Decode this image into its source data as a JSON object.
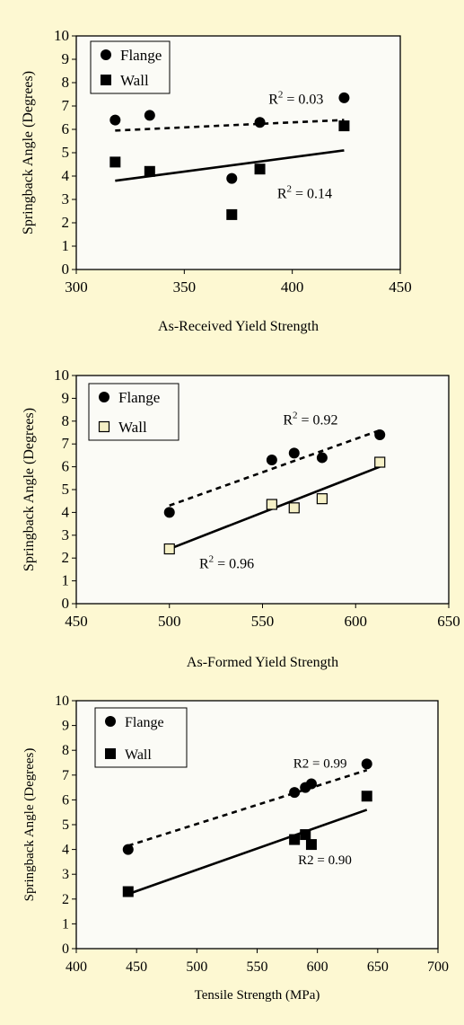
{
  "chart_data": [
    {
      "type": "scatter",
      "xlabel": "As-Received Yield Strength",
      "ylabel": "Springback Angle (Degrees)",
      "xlim": [
        300,
        450
      ],
      "ylim": [
        0,
        10
      ],
      "xticks": [
        300,
        350,
        400,
        450
      ],
      "yticks": [
        0,
        1,
        2,
        3,
        4,
        5,
        6,
        7,
        8,
        9,
        10
      ],
      "grid": false,
      "legend": "top-left",
      "series": [
        {
          "name": "Flange",
          "marker": "circle",
          "color": "#000000",
          "x": [
            318,
            334,
            372,
            385,
            424
          ],
          "y": [
            6.4,
            6.6,
            3.9,
            6.3,
            7.35
          ],
          "trend": {
            "style": "dashed",
            "from": [
              318,
              5.95
            ],
            "to": [
              424,
              6.4
            ]
          }
        },
        {
          "name": "Wall",
          "marker": "square",
          "color": "#000000",
          "x": [
            318,
            334,
            372,
            385,
            424
          ],
          "y": [
            4.6,
            4.2,
            2.35,
            4.3,
            6.15
          ],
          "trend": {
            "style": "solid",
            "from": [
              318,
              3.8
            ],
            "to": [
              424,
              5.1
            ]
          }
        }
      ],
      "annotations": [
        {
          "text": "R",
          "sup": "2",
          "rest": " = 0.03",
          "x": 389,
          "y": 7.1
        },
        {
          "text": "R",
          "sup": "2",
          "rest": " = 0.14",
          "x": 393,
          "y": 3.05
        }
      ]
    },
    {
      "type": "scatter",
      "xlabel": "As-Formed Yield Strength",
      "ylabel": "Springback Angle (Degrees)",
      "xlim": [
        450,
        650
      ],
      "ylim": [
        0,
        10
      ],
      "xticks": [
        450,
        500,
        550,
        600,
        650
      ],
      "yticks": [
        0,
        1,
        2,
        3,
        4,
        5,
        6,
        7,
        8,
        9,
        10
      ],
      "grid": false,
      "legend": "top-left",
      "series": [
        {
          "name": "Flange",
          "marker": "circle",
          "color": "#000000",
          "x": [
            500,
            555,
            567,
            582,
            613
          ],
          "y": [
            4.0,
            6.3,
            6.6,
            6.4,
            7.4
          ],
          "trend": {
            "style": "dashed",
            "from": [
              500,
              4.3
            ],
            "to": [
              613,
              7.6
            ]
          }
        },
        {
          "name": "Wall",
          "marker": "square-open",
          "color": "#f5f0c6",
          "x": [
            500,
            555,
            567,
            582,
            613
          ],
          "y": [
            2.4,
            4.35,
            4.2,
            4.6,
            6.2
          ],
          "trend": {
            "style": "solid",
            "from": [
              500,
              2.4
            ],
            "to": [
              613,
              6.0
            ]
          }
        }
      ],
      "annotations": [
        {
          "text": "R",
          "sup": "2",
          "rest": " = 0.92",
          "x": 561,
          "y": 7.85
        },
        {
          "text": "R",
          "sup": "2",
          "rest": " = 0.96",
          "x": 516,
          "y": 1.55
        }
      ]
    },
    {
      "type": "scatter",
      "xlabel": "Tensile Strength (MPa)",
      "ylabel": "Springback Angle (Degrees)",
      "xlim": [
        400,
        700
      ],
      "ylim": [
        0,
        10
      ],
      "xticks": [
        400,
        450,
        500,
        550,
        600,
        650,
        700
      ],
      "yticks": [
        0,
        1,
        2,
        3,
        4,
        5,
        6,
        7,
        8,
        9,
        10
      ],
      "grid": false,
      "legend": "top-left",
      "series": [
        {
          "name": "Flange",
          "marker": "circle",
          "color": "#000000",
          "x": [
            443,
            581,
            590,
            595,
            641
          ],
          "y": [
            4.0,
            6.3,
            6.5,
            6.65,
            7.45
          ],
          "trend": {
            "style": "dashed",
            "from": [
              443,
              4.15
            ],
            "to": [
              641,
              7.2
            ]
          }
        },
        {
          "name": "Wall",
          "marker": "square",
          "color": "#000000",
          "x": [
            443,
            581,
            590,
            595,
            641
          ],
          "y": [
            2.3,
            4.4,
            4.6,
            4.2,
            6.15
          ],
          "trend": {
            "style": "solid",
            "from": [
              443,
              2.2
            ],
            "to": [
              641,
              5.6
            ]
          }
        }
      ],
      "annotations": [
        {
          "text": "R2 = 0.99",
          "x": 580,
          "y": 7.3
        },
        {
          "text": "R2 = 0.90",
          "x": 584,
          "y": 3.4
        }
      ]
    }
  ]
}
